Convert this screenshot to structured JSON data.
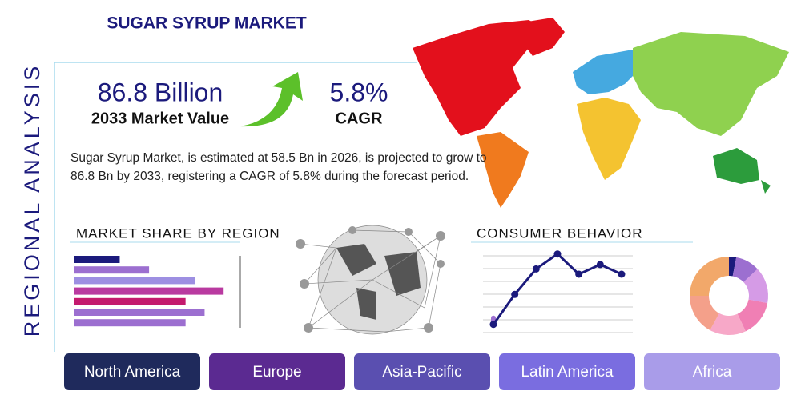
{
  "header": {
    "title": "SUGAR SYRUP MARKET",
    "side_title": "REGIONAL ANALYSIS"
  },
  "highlights": {
    "market_value": "86.8 Billion",
    "market_value_label": "2033 Market Value",
    "cagr": "5.8%",
    "cagr_label": "CAGR"
  },
  "description": "Sugar Syrup Market, is estimated at 58.5 Bn in 2026, is projected to grow to 86.8 Bn by 2033, registering a CAGR of 5.8% during the forecast period.",
  "market_share": {
    "title": "MARKET SHARE BY REGION",
    "type": "bar",
    "xlim": [
      0,
      210
    ],
    "values": [
      58,
      95,
      153,
      189,
      141,
      165,
      141
    ],
    "colors": [
      "#1b1a7c",
      "#9c6fd0",
      "#9d8fe2",
      "#b93aa0",
      "#c41a6e",
      "#9c6fd0",
      "#9c6fd0"
    ]
  },
  "consumer_behavior": {
    "title": "CONSUMER BEHAVIOR",
    "type": "line",
    "ylim": [
      0,
      100
    ],
    "values": [
      13,
      47,
      76,
      93,
      70,
      81,
      70
    ],
    "color": "#1b1a7c"
  },
  "donut": {
    "type": "pie",
    "values": [
      3,
      10,
      15,
      15,
      15,
      17,
      25
    ],
    "colors": [
      "#1b1a7c",
      "#9c6fd0",
      "#d59be6",
      "#f07fb4",
      "#f7a8c8",
      "#f4a08a",
      "#f2a86a"
    ]
  },
  "regions": [
    "North America",
    "Europe",
    "Asia-Pacific",
    "Latin America",
    "Africa"
  ]
}
